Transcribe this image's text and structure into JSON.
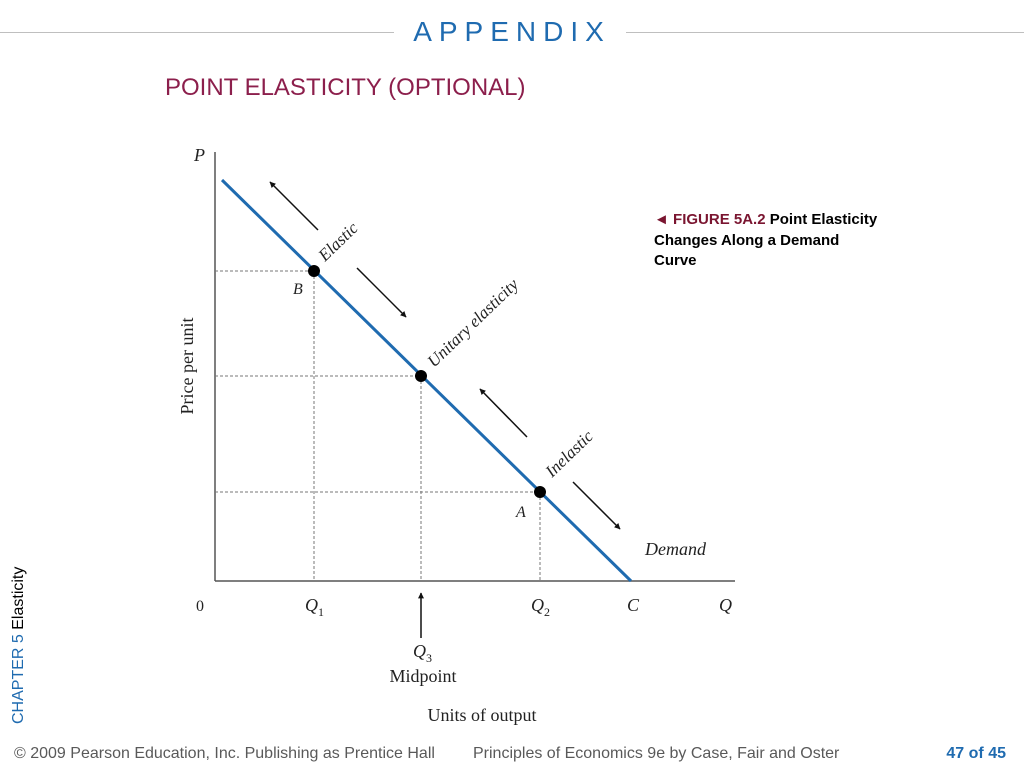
{
  "header": {
    "section": "APPENDIX",
    "title": "POINT ELASTICITY (OPTIONAL)"
  },
  "diagram": {
    "y_axis_symbol": "P",
    "y_axis_label": "Price per unit",
    "x_axis_symbol": "Q",
    "x_axis_label": "Units of output",
    "origin": "0",
    "point_b": "B",
    "point_a": "A",
    "curve_label": "Demand",
    "region_elastic": "Elastic",
    "region_unitary": "Unitary elasticity",
    "region_inelastic": "Inelastic",
    "q1": {
      "letter": "Q",
      "sub": "1"
    },
    "q2": {
      "letter": "Q",
      "sub": "2"
    },
    "q3": {
      "letter": "Q",
      "sub": "3"
    },
    "c_label": "C",
    "midpoint_label": "Midpoint",
    "colors": {
      "demand_curve": "#1f6bb0",
      "axes": "#555555",
      "arrows": "#111111"
    }
  },
  "caption": {
    "marker": "◄",
    "figure": "FIGURE 5A.2",
    "text": "Point Elasticity Changes Along a Demand Curve"
  },
  "sidebar": {
    "chapter": "CHAPTER 5",
    "topic": "Elasticity"
  },
  "footer": {
    "copyright": "© 2009 Pearson Education, Inc. Publishing as Prentice Hall",
    "book": "Principles of Economics 9e by Case, Fair and Oster",
    "page": "47 of 45"
  }
}
